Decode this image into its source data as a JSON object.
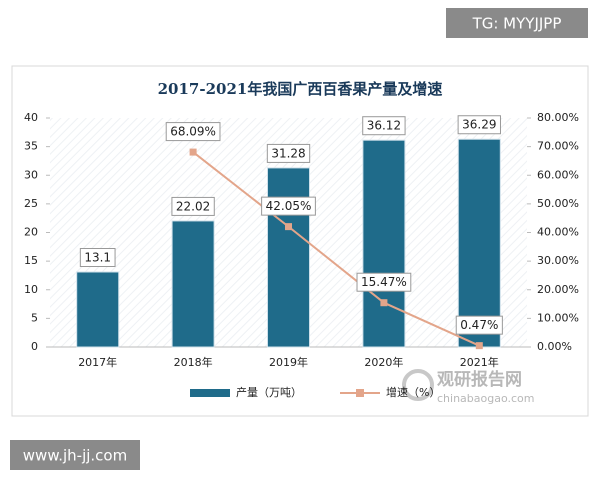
{
  "chart_data": {
    "type": "bar-line",
    "title": "2017-2021年我国广西百香果产量及增速",
    "categories": [
      "2017年",
      "2018年",
      "2019年",
      "2020年",
      "2021年"
    ],
    "series": [
      {
        "name": "产量（万吨）",
        "type": "bar",
        "color": "#1f6b8a",
        "values": [
          13.1,
          22.02,
          31.28,
          36.12,
          36.29
        ]
      },
      {
        "name": "增速（%）",
        "type": "line",
        "axis": "y2",
        "color": "#e3a58a",
        "values": [
          null,
          68.09,
          42.05,
          15.47,
          0.47
        ],
        "value_labels": [
          null,
          "68.09%",
          "42.05%",
          "15.47%",
          "0.47%"
        ]
      }
    ],
    "ylim": [
      0,
      40
    ],
    "yticks": [
      0,
      5,
      10,
      15,
      20,
      25,
      30,
      35,
      40
    ],
    "y2lim": [
      0,
      80
    ],
    "y2ticks": [
      {
        "value": 0,
        "label": "0.00%"
      },
      {
        "value": 10,
        "label": "10.00%"
      },
      {
        "value": 20,
        "label": "20.00%"
      },
      {
        "value": 30,
        "label": "30.00%"
      },
      {
        "value": 40,
        "label": "40.00%"
      },
      {
        "value": 50,
        "label": "50.00%"
      },
      {
        "value": 60,
        "label": "60.00%"
      },
      {
        "value": 70,
        "label": "70.00%"
      },
      {
        "value": 80,
        "label": "80.00%"
      }
    ],
    "grid": false,
    "legend": "bottom"
  },
  "overlays": {
    "tag": "TG: MYYJJPP",
    "site": "www.jh-jj.com",
    "brand": "观研报告网",
    "brand_url": "chinabaogao.com"
  }
}
